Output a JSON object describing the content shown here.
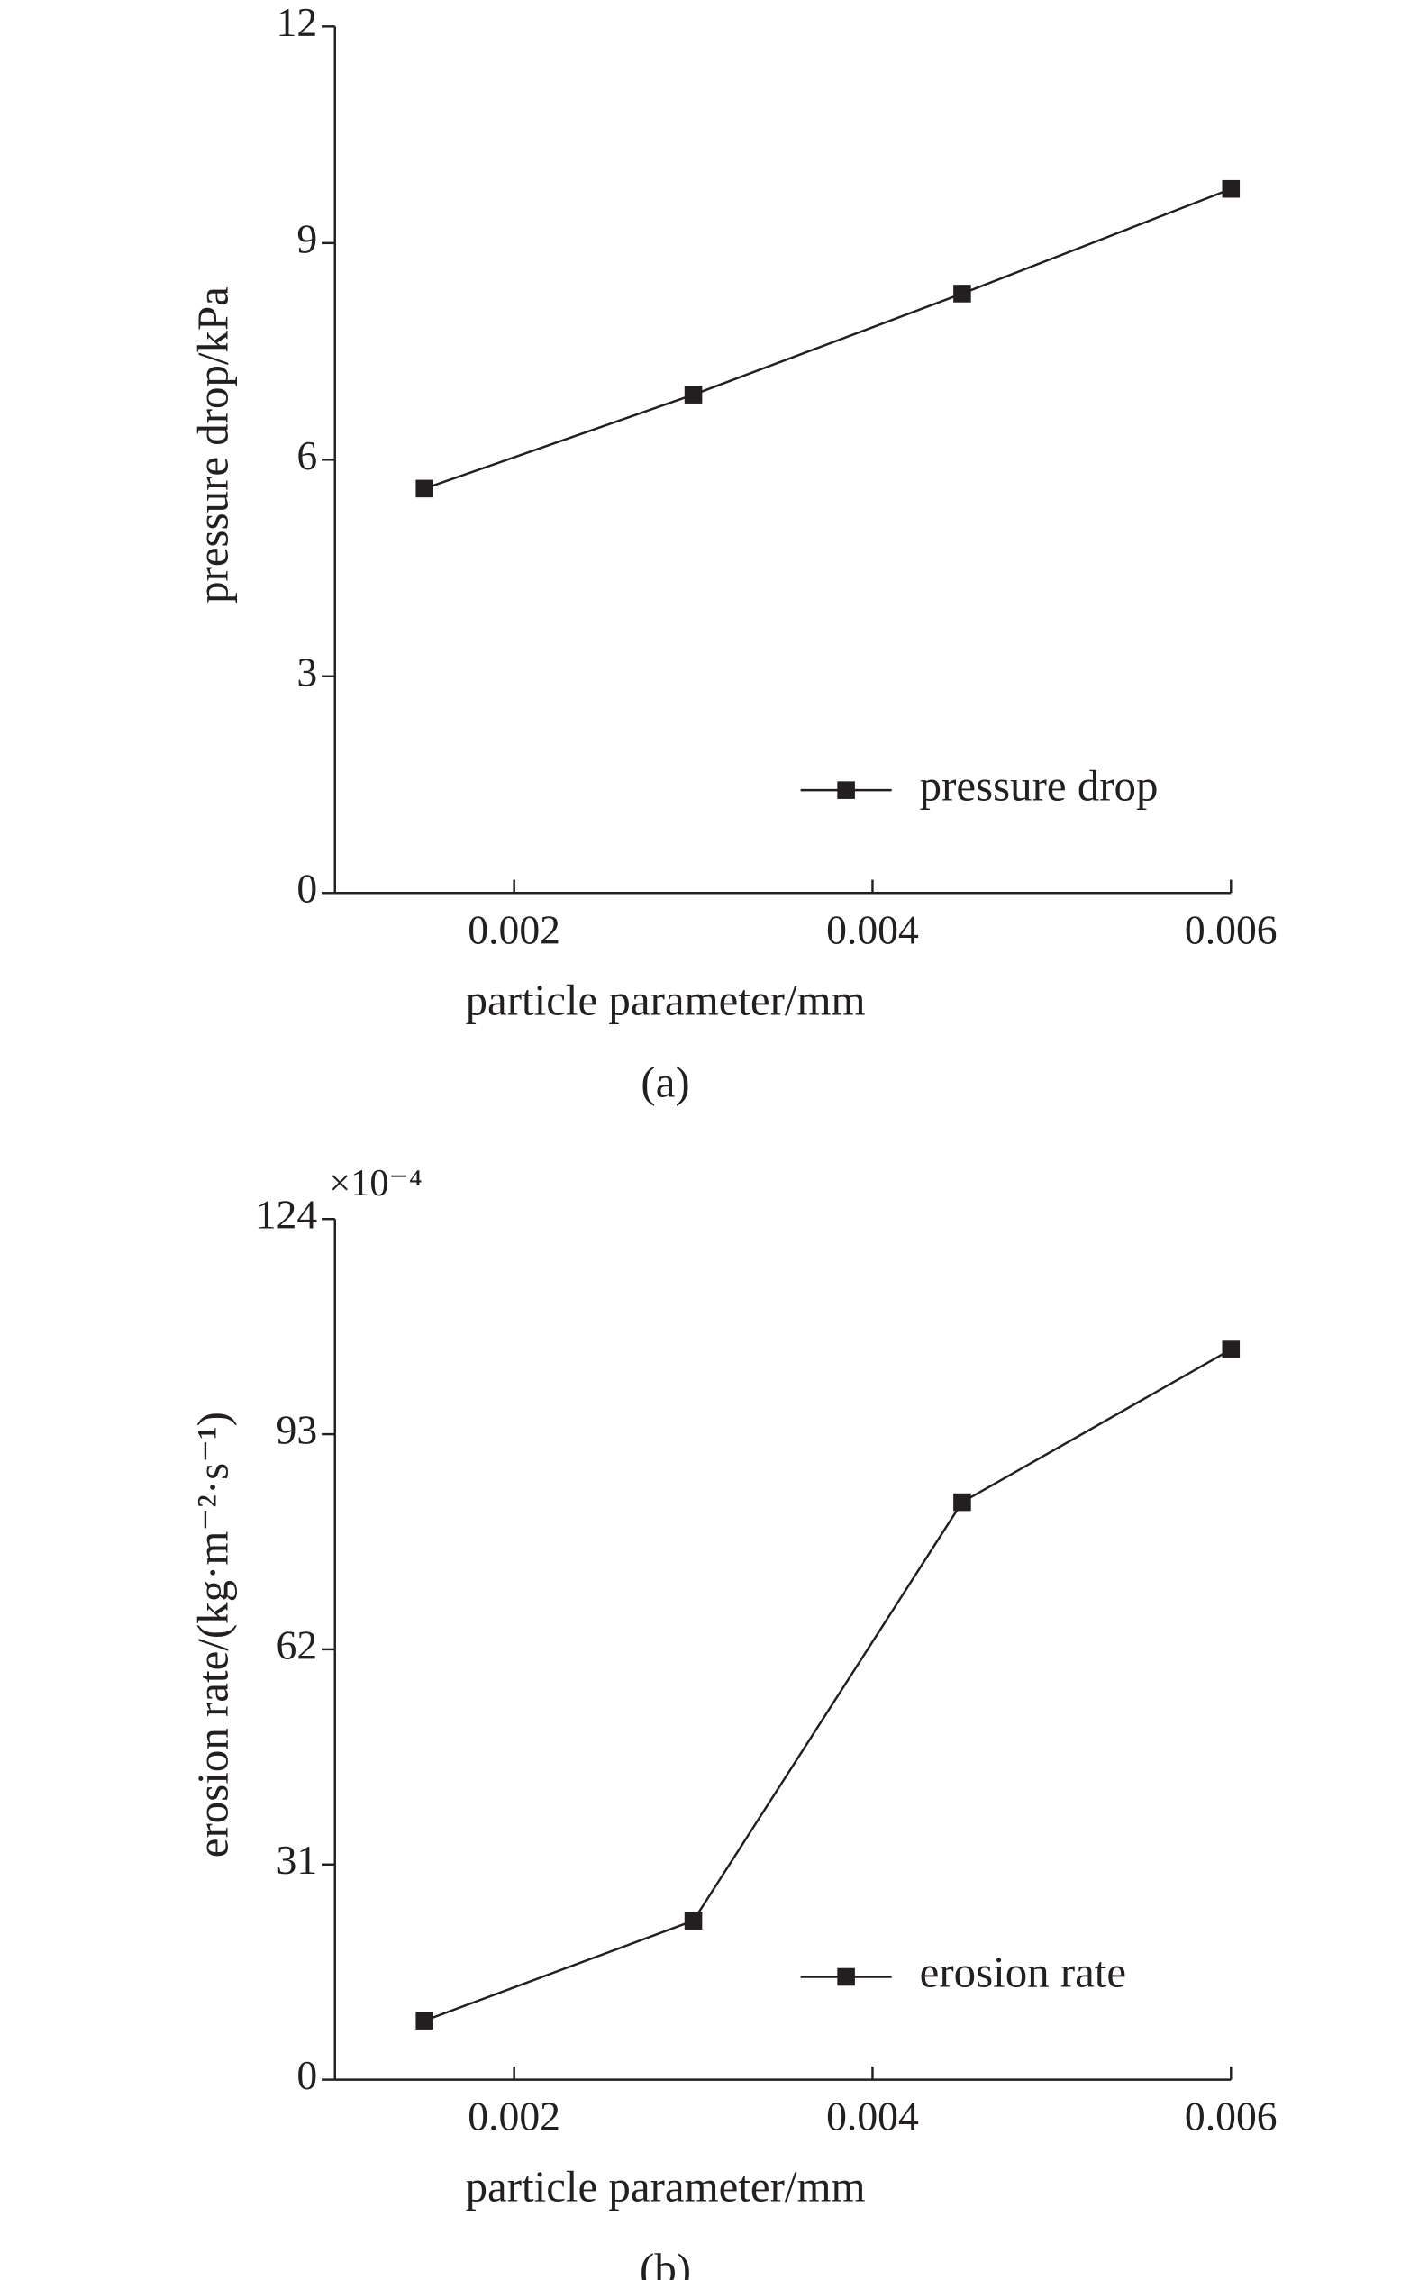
{
  "chart_data": [
    {
      "type": "line",
      "x_label": "particle parameter/mm",
      "y_label": "pressure drop/kPa",
      "caption": "(a)",
      "x": [
        0.0015,
        0.003,
        0.0045,
        0.006
      ],
      "series": [
        {
          "name": "pressure drop",
          "color": "#231f20",
          "values": [
            5.6,
            6.9,
            8.3,
            9.75
          ]
        }
      ],
      "xlim": [
        0.001,
        0.006
      ],
      "xticks": [
        0.002,
        0.004,
        0.006
      ],
      "ylim": [
        0,
        12
      ],
      "yticks": [
        0,
        3,
        6,
        9,
        12
      ],
      "legend": "lower right"
    },
    {
      "type": "line",
      "x_label": "particle parameter/mm",
      "y_label": "erosion rate/(kg·m⁻²·s⁻¹)",
      "caption": "(b)",
      "y_multiplier": "×10⁻⁴",
      "x": [
        0.0015,
        0.003,
        0.0045,
        0.006
      ],
      "series": [
        {
          "name": "erosion rate",
          "color": "#231f20",
          "values": [
            8.5,
            22.9,
            83.2,
            105.2
          ]
        }
      ],
      "xlim": [
        0.001,
        0.006
      ],
      "xticks": [
        0.002,
        0.004,
        0.006
      ],
      "ylim": [
        0,
        124
      ],
      "yticks": [
        0,
        31,
        62,
        93,
        124
      ],
      "legend": "lower right"
    }
  ]
}
